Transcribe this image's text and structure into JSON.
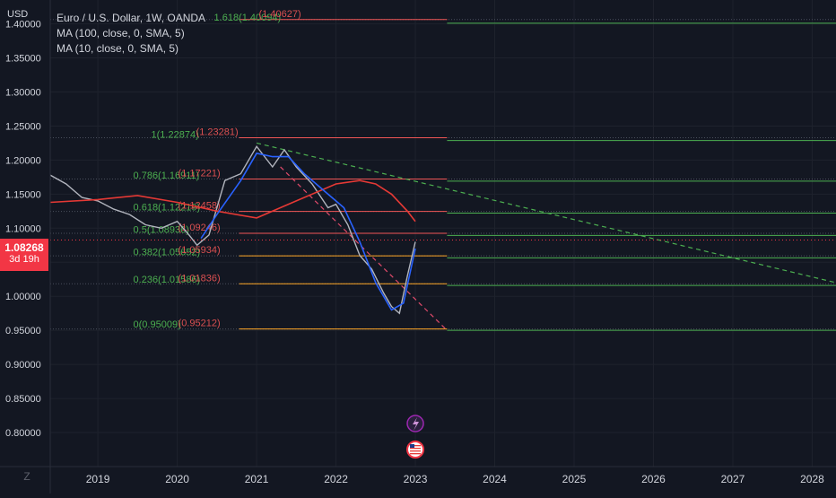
{
  "chart_data": {
    "type": "line",
    "title": "Euro / U.S. Dollar, 1W, OANDA",
    "indicators": [
      "MA (100, close, 0, SMA, 5)",
      "MA (10, close, 0, SMA, 5)"
    ],
    "ylabel": "USD",
    "ylim": [
      0.75,
      1.435
    ],
    "xlim": [
      2018.4,
      2028.3
    ],
    "y_ticks": [
      "1.40000",
      "1.35000",
      "1.30000",
      "1.25000",
      "1.20000",
      "1.15000",
      "1.10000",
      "1.05000",
      "1.00000",
      "0.95000",
      "0.90000",
      "0.85000",
      "0.80000"
    ],
    "x_ticks": [
      "2019",
      "2020",
      "2021",
      "2022",
      "2023",
      "2024",
      "2025",
      "2026",
      "2027",
      "2028"
    ],
    "current_price": "1.08268",
    "countdown": "3d 19h",
    "price_series": {
      "x": [
        2018.4,
        2018.6,
        2018.8,
        2019.0,
        2019.2,
        2019.4,
        2019.6,
        2019.8,
        2020.0,
        2020.15,
        2020.25,
        2020.4,
        2020.6,
        2020.8,
        2021.0,
        2021.2,
        2021.35,
        2021.5,
        2021.7,
        2021.9,
        2022.0,
        2022.15,
        2022.3,
        2022.45,
        2022.6,
        2022.7,
        2022.8,
        2022.9,
        2023.0
      ],
      "y": [
        1.178,
        1.165,
        1.145,
        1.14,
        1.128,
        1.12,
        1.105,
        1.1,
        1.11,
        1.09,
        1.075,
        1.09,
        1.17,
        1.18,
        1.22,
        1.19,
        1.215,
        1.19,
        1.165,
        1.13,
        1.135,
        1.105,
        1.06,
        1.04,
        1.005,
        0.985,
        0.975,
        1.03,
        1.08
      ]
    },
    "ma100": {
      "x": [
        2018.4,
        2019.0,
        2019.5,
        2020.0,
        2020.5,
        2021.0,
        2021.5,
        2022.0,
        2022.3,
        2022.5,
        2022.7,
        2022.9,
        2023.0
      ],
      "y": [
        1.138,
        1.142,
        1.148,
        1.138,
        1.125,
        1.115,
        1.14,
        1.165,
        1.17,
        1.165,
        1.15,
        1.125,
        1.11
      ]
    },
    "ma10": {
      "x": [
        2020.3,
        2020.5,
        2020.8,
        2021.0,
        2021.2,
        2021.4,
        2021.6,
        2021.9,
        2022.1,
        2022.3,
        2022.5,
        2022.7,
        2022.85,
        2023.0
      ],
      "y": [
        1.085,
        1.12,
        1.17,
        1.21,
        1.205,
        1.205,
        1.18,
        1.15,
        1.13,
        1.08,
        1.02,
        0.98,
        0.99,
        1.07
      ]
    },
    "fib_levels": [
      {
        "label": "1.618(1.40094)",
        "label2": "(1.40627)",
        "value": 1.40094,
        "value2": 1.40627
      },
      {
        "label": "1(1.22874)",
        "label2": "(1.23281)",
        "value": 1.22874,
        "value2": 1.23281
      },
      {
        "label": "0.786(1.16911)",
        "label2": "(1.17221)",
        "value": 1.16911,
        "value2": 1.17221
      },
      {
        "label": "0.618(1.12219)",
        "label2": "(1.12458)",
        "value": 1.12219,
        "value2": 1.12458
      },
      {
        "label": "0.5(1.08936)",
        "label2": "(1.09246)",
        "value": 1.08936,
        "value2": 1.09246
      },
      {
        "label": "0.382(1.05652)",
        "label2": "(1.05934)",
        "value": 1.05652,
        "value2": 1.05934
      },
      {
        "label": "0.236(1.01586)",
        "label2": "(1.01836)",
        "value": 1.01586,
        "value2": 1.01836
      },
      {
        "label": "0(0.95009)",
        "label2": "(0.95212)",
        "value": 0.95009,
        "value2": 0.95212
      }
    ],
    "trendlines": [
      {
        "x": [
          2021.0,
          2028.3
        ],
        "y": [
          1.225,
          1.02
        ],
        "color": "#4caf50"
      },
      {
        "x": [
          2021.3,
          2023.4
        ],
        "y": [
          1.19,
          0.95
        ],
        "color": "#e04a6a"
      }
    ],
    "colors": {
      "background": "#131722",
      "price": "#b2b5be",
      "ma100": "#e53935",
      "ma10": "#2962ff",
      "fib_green": "#4caf50",
      "fib_red": "#f05656",
      "fib_orange": "#ffa726",
      "axis_text": "#d1d4dc"
    }
  },
  "icons": [
    "lightning-icon",
    "us-flag-icon",
    "tradingview-logo-icon"
  ]
}
